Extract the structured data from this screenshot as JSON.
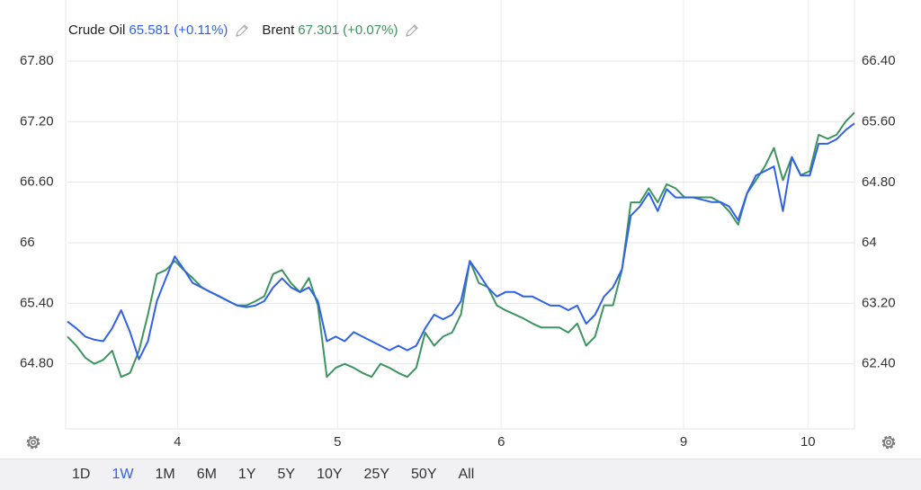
{
  "chart_data": {
    "type": "line",
    "x": [
      0,
      1,
      2,
      3,
      4,
      5,
      6,
      7,
      8,
      9,
      10,
      11,
      12,
      13,
      14,
      15,
      16,
      17,
      18,
      19,
      20,
      21,
      22,
      23,
      24,
      25,
      26,
      27,
      28,
      29,
      30,
      31,
      32,
      33,
      34,
      35,
      36,
      37,
      38,
      39,
      40,
      41,
      42,
      43,
      44,
      45,
      46,
      47,
      48,
      49,
      50,
      51,
      52,
      53,
      54,
      55,
      56,
      57,
      58,
      59,
      60,
      61,
      62,
      63,
      64,
      65,
      66,
      67,
      68,
      69,
      70,
      71,
      72,
      73,
      74,
      75,
      76,
      77,
      78,
      79,
      80,
      81,
      82,
      83,
      84,
      85,
      86,
      87,
      88
    ],
    "xlim": [
      0,
      88
    ],
    "xticks": [
      {
        "value": 12.3,
        "label": "4"
      },
      {
        "value": 30.2,
        "label": "5"
      },
      {
        "value": 48.5,
        "label": "6"
      },
      {
        "value": 68.9,
        "label": "9"
      },
      {
        "value": 82.8,
        "label": "10"
      }
    ],
    "ylim": [
      64.2,
      68.0
    ],
    "yticks": [
      {
        "value": 64.8,
        "label": "64.80"
      },
      {
        "value": 65.4,
        "label": "65.40"
      },
      66,
      {
        "value": 66.6,
        "label": "66.60"
      },
      {
        "value": 67.2,
        "label": "67.20"
      },
      {
        "value": 67.8,
        "label": "67.80"
      }
    ],
    "y2lim": [
      61.6,
      66.67
    ],
    "y2ticks": [
      {
        "value": 62.4,
        "label": "62.40"
      },
      {
        "value": 63.2,
        "label": "63.20"
      },
      64,
      {
        "value": 64.8,
        "label": "64.80"
      },
      {
        "value": 65.6,
        "label": "65.60"
      },
      {
        "value": 66.4,
        "label": "66.40"
      }
    ],
    "grid": true,
    "series": [
      {
        "name": "Crude Oil",
        "color": "#2f62e8",
        "axis": "y2",
        "last": 65.581,
        "change_label": "(+0.11%)",
        "values": [
          62.96,
          62.87,
          62.76,
          62.72,
          62.7,
          62.87,
          63.11,
          62.82,
          62.46,
          62.7,
          63.23,
          63.53,
          63.82,
          63.65,
          63.47,
          63.41,
          63.35,
          63.29,
          63.23,
          63.17,
          63.15,
          63.17,
          63.23,
          63.41,
          63.53,
          63.41,
          63.35,
          63.41,
          63.23,
          62.7,
          62.76,
          62.7,
          62.82,
          62.76,
          62.7,
          62.64,
          62.58,
          62.64,
          62.58,
          62.64,
          62.87,
          63.05,
          62.99,
          63.05,
          63.23,
          63.76,
          63.59,
          63.41,
          63.29,
          63.35,
          63.35,
          63.29,
          63.29,
          63.23,
          63.17,
          63.17,
          63.11,
          63.17,
          62.93,
          63.05,
          63.29,
          63.41,
          63.65,
          64.36,
          64.48,
          64.66,
          64.42,
          64.71,
          64.6,
          64.6,
          64.6,
          64.57,
          64.54,
          64.54,
          64.48,
          64.3,
          64.66,
          64.89,
          64.95,
          65.01,
          64.42,
          65.13,
          64.89,
          64.89,
          65.31,
          65.31,
          65.37,
          65.49,
          65.58
        ]
      },
      {
        "name": "Brent",
        "color": "#3d9460",
        "last": 67.301,
        "change_label": "(+0.07%)",
        "values": [
          65.07,
          64.98,
          64.86,
          64.8,
          64.84,
          64.93,
          64.67,
          64.71,
          64.93,
          65.29,
          65.69,
          65.73,
          65.82,
          65.73,
          65.65,
          65.56,
          65.51,
          65.47,
          65.42,
          65.38,
          65.38,
          65.42,
          65.47,
          65.69,
          65.73,
          65.6,
          65.51,
          65.65,
          65.38,
          64.67,
          64.76,
          64.8,
          64.76,
          64.71,
          64.67,
          64.8,
          64.76,
          64.71,
          64.67,
          64.76,
          65.11,
          64.98,
          65.07,
          65.11,
          65.29,
          65.82,
          65.6,
          65.56,
          65.38,
          65.33,
          65.29,
          65.25,
          65.2,
          65.16,
          65.16,
          65.16,
          65.11,
          65.2,
          64.98,
          65.07,
          65.38,
          65.38,
          65.73,
          66.4,
          66.4,
          66.54,
          66.4,
          66.58,
          66.54,
          66.45,
          66.45,
          66.45,
          66.45,
          66.4,
          66.31,
          66.18,
          66.49,
          66.62,
          66.76,
          66.94,
          66.62,
          66.85,
          66.67,
          66.71,
          67.07,
          67.03,
          67.07,
          67.2,
          67.29
        ]
      }
    ]
  },
  "range_selector": {
    "options": [
      "1D",
      "1W",
      "1M",
      "6M",
      "1Y",
      "5Y",
      "10Y",
      "25Y",
      "50Y",
      "All"
    ],
    "selected": 1
  }
}
